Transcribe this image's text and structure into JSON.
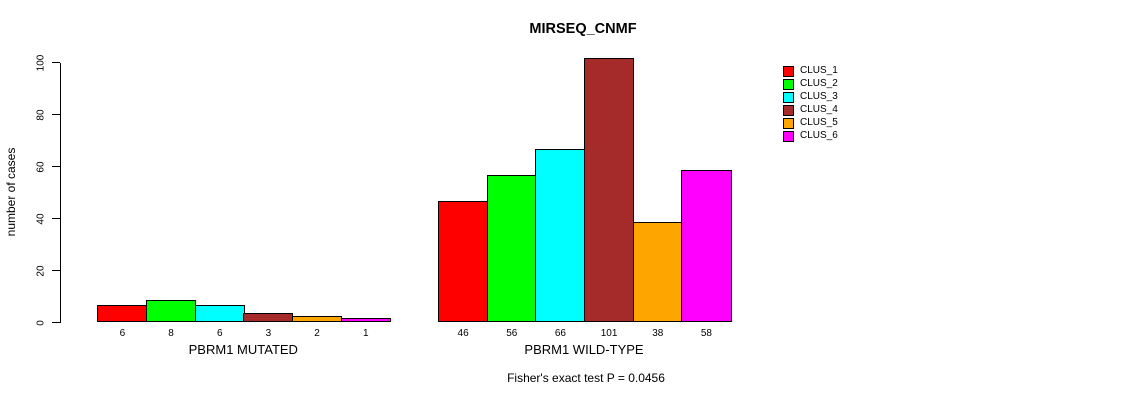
{
  "chart_data": {
    "type": "bar",
    "title": "MIRSEQ_CNMF",
    "ylabel": "number of cases",
    "ylim": [
      0,
      100
    ],
    "yticks": [
      0,
      20,
      40,
      60,
      80,
      100
    ],
    "grid": false,
    "legend_position": "right",
    "categories": [
      "PBRM1 MUTATED",
      "PBRM1 WILD-TYPE"
    ],
    "series": [
      {
        "name": "CLUS_1",
        "color": "#ff0000",
        "values": [
          6,
          46
        ]
      },
      {
        "name": "CLUS_2",
        "color": "#00ff00",
        "values": [
          8,
          56
        ]
      },
      {
        "name": "CLUS_3",
        "color": "#00ffff",
        "values": [
          6,
          66
        ]
      },
      {
        "name": "CLUS_4",
        "color": "#a52a2a",
        "values": [
          3,
          101
        ]
      },
      {
        "name": "CLUS_5",
        "color": "#ffa500",
        "values": [
          2,
          38
        ]
      },
      {
        "name": "CLUS_6",
        "color": "#ff00ff",
        "values": [
          1,
          58
        ]
      }
    ],
    "bar_value_labels": [
      [
        6,
        8,
        6,
        3,
        2,
        1
      ],
      [
        46,
        56,
        66,
        101,
        38,
        58
      ]
    ],
    "annotation": "Fisher's exact test P = 0.0456"
  }
}
